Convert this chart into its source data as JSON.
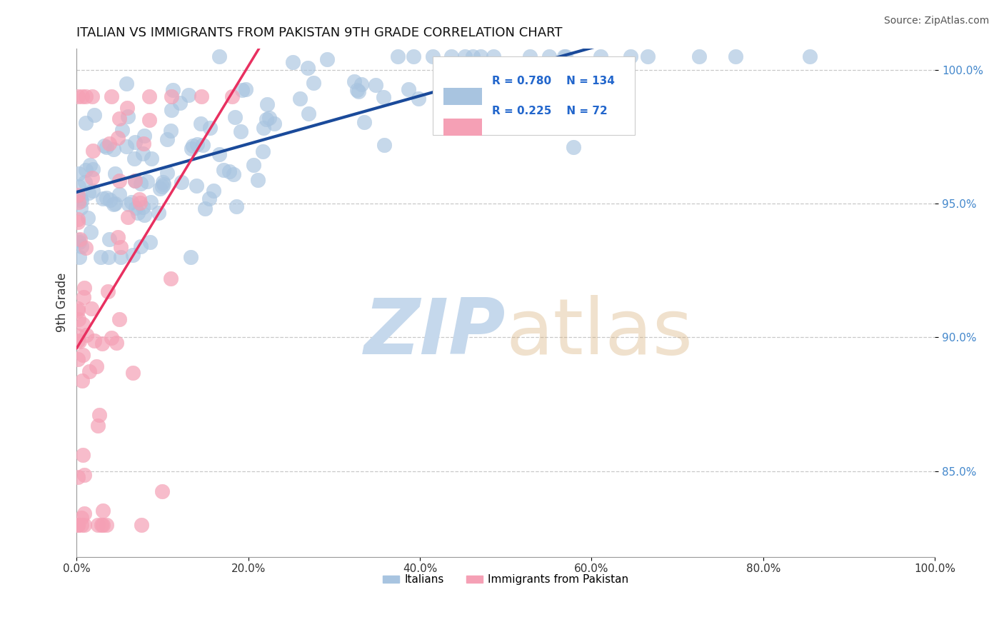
{
  "title": "ITALIAN VS IMMIGRANTS FROM PAKISTAN 9TH GRADE CORRELATION CHART",
  "source_text": "Source: ZipAtlas.com",
  "ylabel": "9th Grade",
  "xlim": [
    0.0,
    1.0
  ],
  "ylim": [
    0.818,
    1.008
  ],
  "xtick_vals": [
    0.0,
    0.2,
    0.4,
    0.6,
    0.8,
    1.0
  ],
  "xtick_labels": [
    "0.0%",
    "20.0%",
    "40.0%",
    "60.0%",
    "80.0%",
    "100.0%"
  ],
  "ytick_vals": [
    0.85,
    0.9,
    0.95,
    1.0
  ],
  "ytick_labels": [
    "85.0%",
    "90.0%",
    "95.0%",
    "100.0%"
  ],
  "legend_r_blue": "0.780",
  "legend_n_blue": "134",
  "legend_r_pink": "0.225",
  "legend_n_pink": "72",
  "blue_color": "#a8c4e0",
  "blue_edge": "#a8c4e0",
  "blue_line_color": "#1a4a9a",
  "pink_color": "#f5a0b5",
  "pink_edge": "#f5a0b5",
  "pink_line_color": "#e83060",
  "ytick_color": "#4488cc",
  "watermark_color": "#c5d8ec",
  "grid_color": "#bbbbbb",
  "background_color": "#ffffff",
  "title_fontsize": 13,
  "source_fontsize": 10,
  "tick_fontsize": 11,
  "legend_fontsize": 11
}
